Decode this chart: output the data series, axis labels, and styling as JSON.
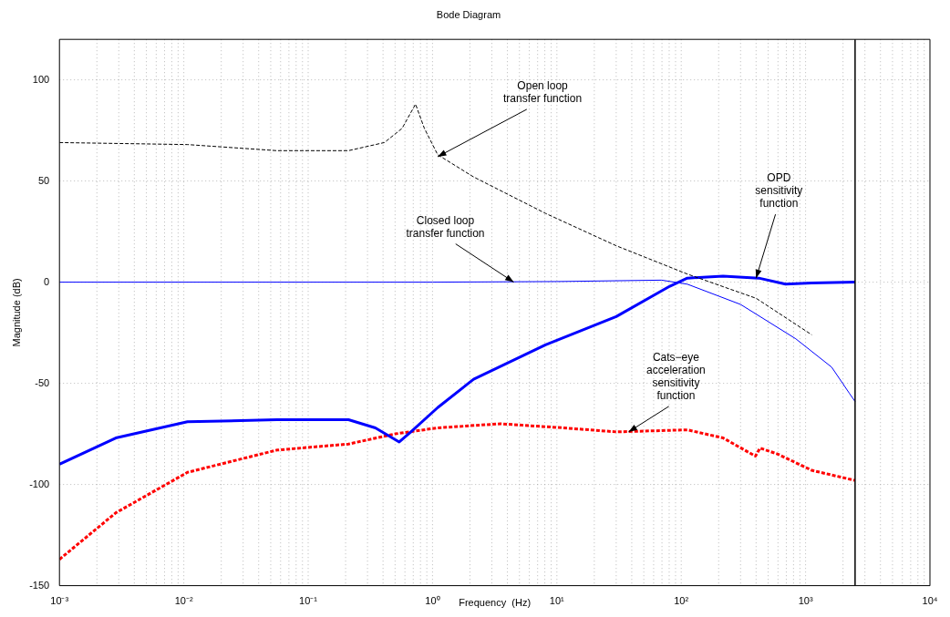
{
  "chart_data": {
    "type": "line",
    "title": "Bode Diagram",
    "xlabel": "Frequency  (Hz)",
    "ylabel": "Magnitude (dB)",
    "log": "x",
    "grid": true,
    "legend": false,
    "marker": "none",
    "xlim": [
      0.001,
      10000
    ],
    "ylim": [
      -150,
      120
    ],
    "xticks": [
      {
        "value": 0.001,
        "label": "10⁻³"
      },
      {
        "value": 0.01,
        "label": "10⁻²"
      },
      {
        "value": 0.1,
        "label": "10⁻¹"
      },
      {
        "value": 1,
        "label": "10⁰"
      },
      {
        "value": 10,
        "label": "10¹"
      },
      {
        "value": 100,
        "label": "10²"
      },
      {
        "value": 1000,
        "label": "10³"
      },
      {
        "value": 10000,
        "label": "10⁴"
      }
    ],
    "yticks": [
      -150,
      -100,
      -50,
      0,
      50,
      100
    ],
    "series": [
      {
        "color": "#000000",
        "line_style": "dashed",
        "x": [
          0.001,
          0.0107,
          0.056,
          0.211,
          0.41,
          0.569,
          0.73,
          0.86,
          1.1,
          2.14,
          8.1,
          30,
          112,
          401,
          1120
        ],
        "values": [
          69,
          68,
          65,
          65,
          69,
          76,
          88,
          76,
          63,
          52,
          34,
          18,
          4,
          -8,
          -26
        ]
      },
      {
        "color": "#0000ff",
        "line_style": "solid",
        "x": [
          0.001,
          1,
          10,
          69.5,
          112,
          300,
          834,
          1620,
          2254,
          2500
        ],
        "values": [
          0,
          0,
          0.3,
          1,
          -1,
          -11,
          -28,
          -42,
          -55,
          -59
        ]
      },
      {
        "color": "#0000ff",
        "line_style": "solid",
        "x": [
          0.001,
          0.00284,
          0.0107,
          0.056,
          0.211,
          0.347,
          0.54,
          0.67,
          1.1,
          2.14,
          8.1,
          30,
          81,
          112,
          217,
          420,
          690,
          1120,
          2500
        ],
        "values": [
          -90,
          -77,
          -69,
          -68,
          -68,
          -72,
          -79,
          -74,
          -62,
          -48,
          -31,
          -17,
          -2,
          2,
          3,
          2,
          -1,
          -0.4,
          0
        ]
      },
      {
        "color": "#ff0000",
        "line_style": "dashed",
        "x": [
          0.001,
          0.00284,
          0.0107,
          0.056,
          0.211,
          0.5,
          1.1,
          3.52,
          11.2,
          30,
          112,
          217,
          395,
          430,
          598,
          1120,
          2500
        ],
        "values": [
          -137,
          -114,
          -94,
          -83,
          -80,
          -75,
          -72,
          -70,
          -72,
          -74,
          -73,
          -77,
          -86,
          -82,
          -85,
          -93,
          -98
        ]
      }
    ],
    "ref_lines": [
      {
        "axis": "x",
        "value": 2500,
        "color": "#000000",
        "line_style": "solid"
      }
    ],
    "annotations": [
      {
        "text": "Open loop\ntransfer function",
        "x": 1.1,
        "y": 62
      },
      {
        "text": "Closed loop\ntransfer function",
        "x": 4.5,
        "y": 0
      },
      {
        "text": "OPD\nsensitivity\nfunction",
        "x": 400,
        "y": 2
      },
      {
        "text": "Cats−eye\nacceleration\nsensitivity\nfunction",
        "x": 37.7,
        "y": -74
      }
    ]
  }
}
